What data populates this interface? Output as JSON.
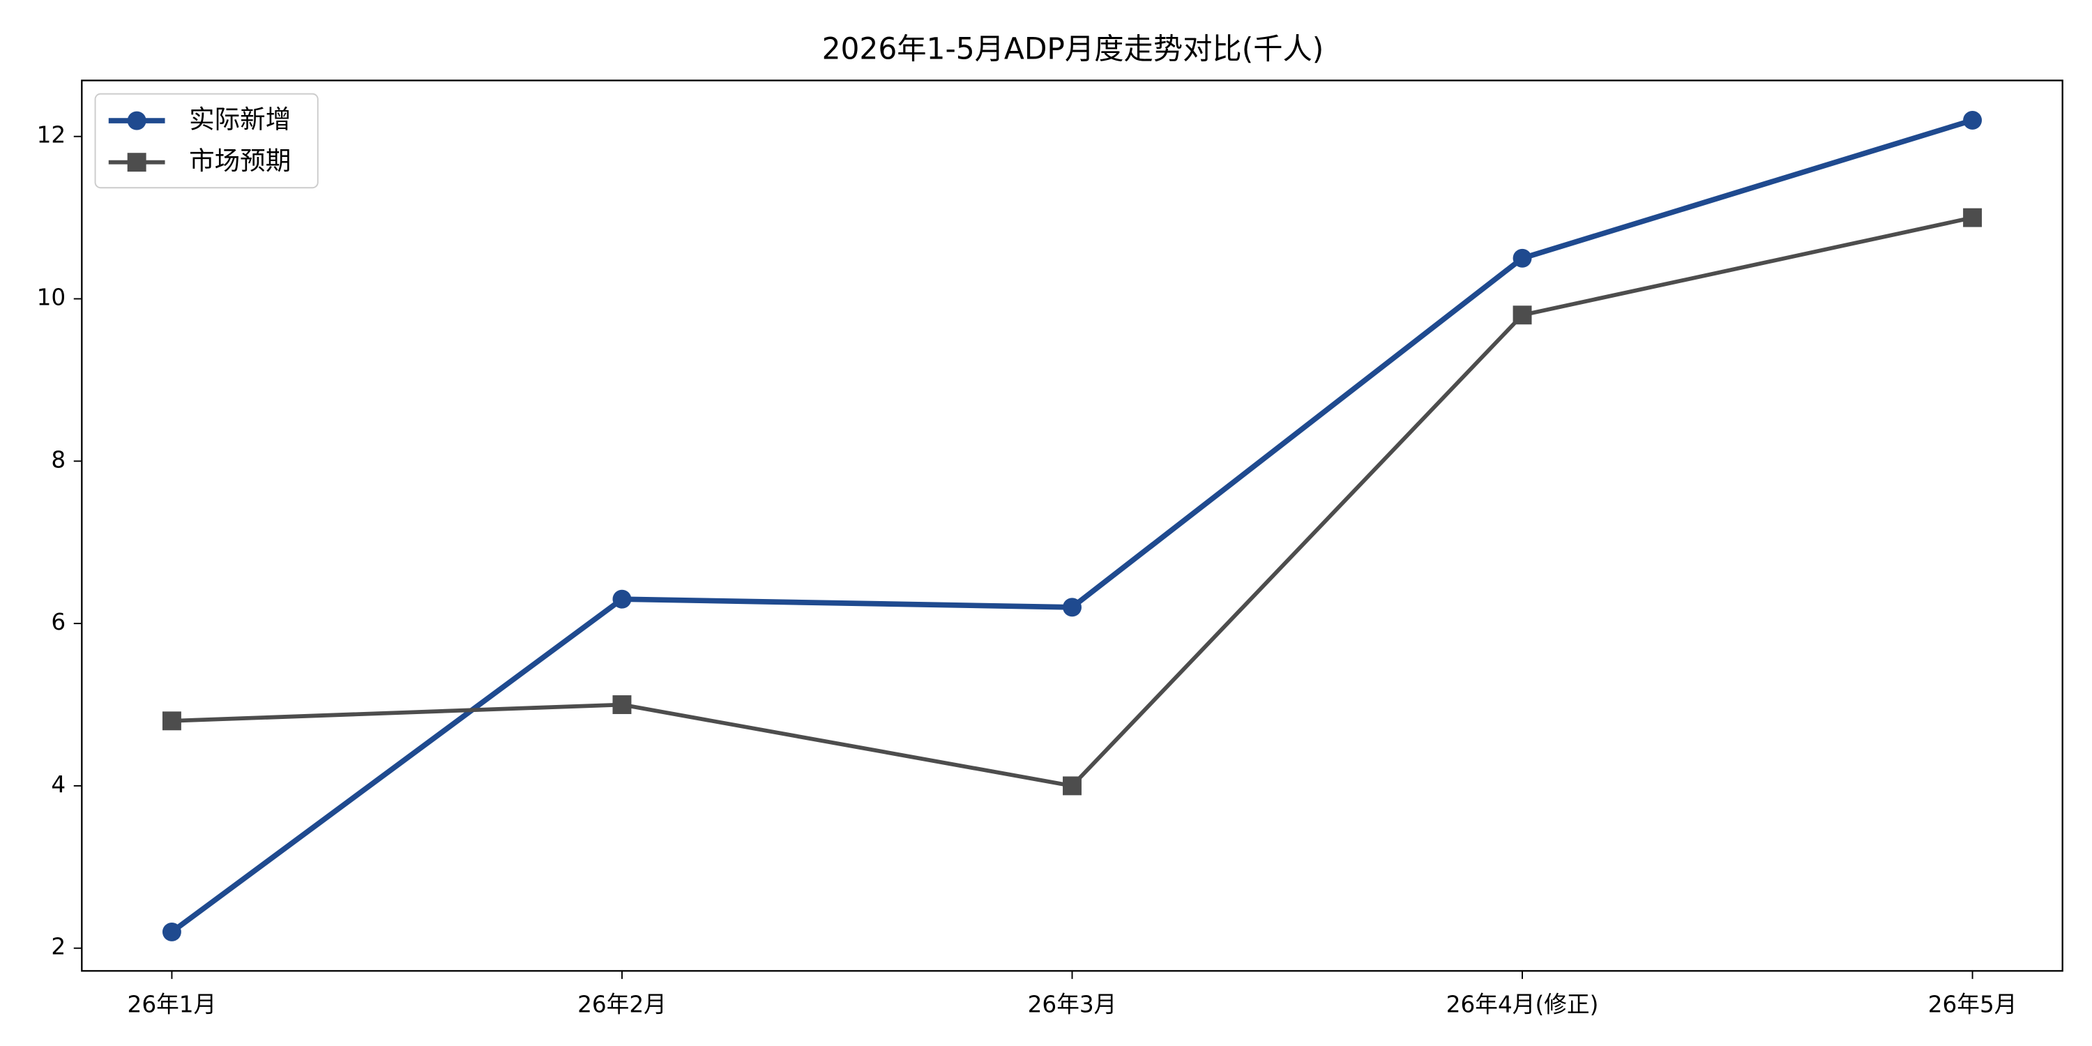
{
  "chart_data": {
    "type": "line",
    "title": "2026年1-5月ADP月度走势对比(千人)",
    "categories": [
      "26年1月",
      "26年2月",
      "26年3月",
      "26年4月(修正)",
      "26年5月"
    ],
    "series": [
      {
        "name": "实际新增",
        "color": "#1f4a8f",
        "marker": "circle",
        "values": [
          2.2,
          6.3,
          6.2,
          10.5,
          12.2
        ]
      },
      {
        "name": "市场预期",
        "color": "#4d4d4d",
        "marker": "square",
        "values": [
          4.8,
          5.0,
          4.0,
          9.8,
          11.0
        ]
      }
    ],
    "ylim": [
      1.72,
      12.69
    ],
    "yticks": [
      2,
      4,
      6,
      8,
      10,
      12
    ],
    "grid": false,
    "legend": "upper-left"
  }
}
